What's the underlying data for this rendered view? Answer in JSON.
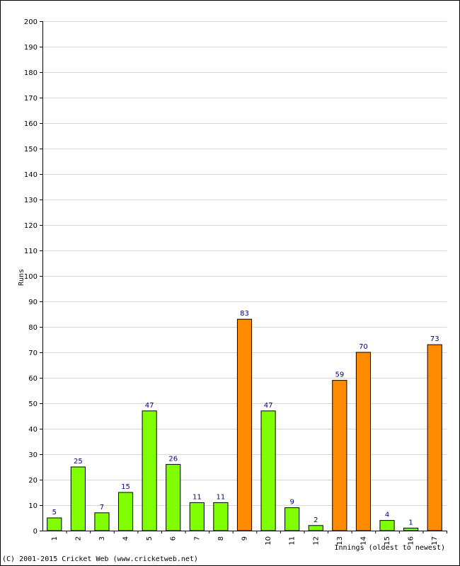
{
  "chart_data": {
    "type": "bar",
    "categories": [
      "1",
      "2",
      "3",
      "4",
      "5",
      "6",
      "7",
      "8",
      "9",
      "10",
      "11",
      "12",
      "13",
      "14",
      "15",
      "16",
      "17"
    ],
    "values": [
      5,
      25,
      7,
      15,
      47,
      26,
      11,
      11,
      83,
      47,
      9,
      2,
      59,
      70,
      4,
      1,
      73
    ],
    "highlight": [
      false,
      false,
      false,
      false,
      false,
      false,
      false,
      false,
      true,
      false,
      false,
      false,
      true,
      true,
      false,
      false,
      true
    ],
    "xlabel": "Innings (oldest to newest)",
    "ylabel": "Runs",
    "ylim": [
      0,
      200
    ],
    "yticks": [
      0,
      10,
      20,
      30,
      40,
      50,
      60,
      70,
      80,
      90,
      100,
      110,
      120,
      130,
      140,
      150,
      160,
      170,
      180,
      190,
      200
    ],
    "grid": true,
    "colors": {
      "normal": "#80ff00",
      "highlight": "#ff8c00",
      "value_label": "#000080",
      "grid": "#d8d8d8"
    }
  },
  "footer": {
    "copyright": "(C) 2001-2015 Cricket Web (www.cricketweb.net)"
  }
}
